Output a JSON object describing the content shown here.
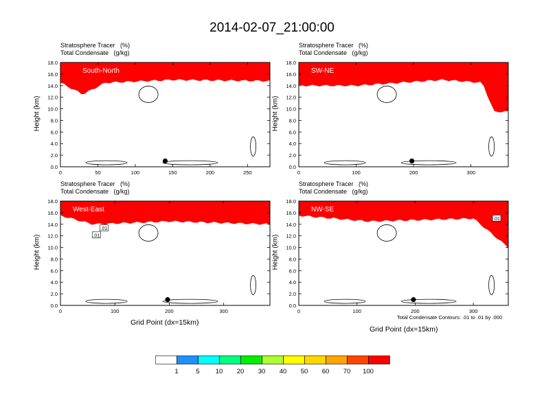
{
  "title": "2014-02-07_21:00:00",
  "panels": [
    {
      "id": "sn",
      "line1": "Stratosphere Tracer   (%)",
      "line2": "Total Condensate   (g/kg)",
      "inset": "South-North",
      "ylabel": "Height (km)",
      "xlabel": "",
      "xmax": 280,
      "xticks": [
        0,
        50,
        100,
        150,
        200,
        250
      ],
      "yticks": [
        "0.0",
        "2.0",
        "4.0",
        "6.0",
        "8.0",
        "10.0",
        "12.0",
        "14.0",
        "16.0",
        "18.0"
      ],
      "marker_x": 140,
      "box_labels": []
    },
    {
      "id": "swne",
      "line1": "Stratosphere Tracer   (%)",
      "line2": "Total Condensate   (g/kg)",
      "inset": "SW-NE",
      "ylabel": "Height (km)",
      "xlabel": "",
      "xmax": 365,
      "xticks": [
        0,
        100,
        200,
        300
      ],
      "yticks": [
        "0.0",
        "2.0",
        "4.0",
        "6.0",
        "8.0",
        "10.0",
        "12.0",
        "14.0",
        "16.0",
        "18.0"
      ],
      "marker_x": 197,
      "box_labels": []
    },
    {
      "id": "we",
      "line1": "Stratosphere Tracer   (%)",
      "line2": "Total Condensate   (g/kg)",
      "inset": "West-East",
      "ylabel": "Height (km)",
      "xlabel": "Grid Point (dx=15km)",
      "xmax": 385,
      "xticks": [
        0,
        100,
        200,
        300
      ],
      "yticks": [
        "0.0",
        "2.0",
        "4.0",
        "6.0",
        "8.0",
        "10.0",
        "12.0",
        "14.0",
        "16.0",
        "18.0"
      ],
      "marker_x": 197,
      "box_labels": [
        {
          "text": ".01",
          "x": 80,
          "y": 13.3
        },
        {
          "text": ".01",
          "x": 66,
          "y": 12.1
        }
      ]
    },
    {
      "id": "nwse",
      "line1": "Stratosphere Tracer   (%)",
      "line2": "Total Condensate   (g/kg)",
      "inset": "NW-SE",
      "ylabel": "Height (km)",
      "xlabel": "Grid Point (dx=15km)",
      "xmax": 360,
      "xticks": [
        0,
        100,
        200,
        300
      ],
      "yticks": [
        "0.0",
        "2.0",
        "4.0",
        "6.0",
        "8.0",
        "10.0",
        "12.0",
        "14.0",
        "16.0",
        "18.0"
      ],
      "marker_x": 197,
      "box_labels": [
        {
          "text": ".01",
          "x": 340,
          "y": 15.0
        }
      ],
      "note": "Total Condensate Contours: .01 to .01 by .000"
    }
  ],
  "colorbar": {
    "labels": [
      "1",
      "5",
      "10",
      "20",
      "30",
      "40",
      "50",
      "60",
      "70",
      "100"
    ],
    "colors": [
      "#ffffff",
      "#1e90ff",
      "#00ffff",
      "#00ff7f",
      "#00ee00",
      "#adff2f",
      "#ffff00",
      "#ffd700",
      "#ffa500",
      "#ff4500",
      "#ff0000"
    ]
  },
  "chart_data": [
    {
      "type": "heatmap",
      "panel": "South-North",
      "ylabel": "Height (km)",
      "ylim": [
        0,
        18
      ],
      "xlim": [
        0,
        280
      ],
      "series": [
        {
          "name": "Stratosphere Tracer (%)",
          "tropopause_km_approx": [
            [
              0,
              14.5
            ],
            [
              30,
              12.5
            ],
            [
              60,
              14.5
            ],
            [
              150,
              15.0
            ],
            [
              280,
              14.8
            ]
          ]
        },
        {
          "name": "Total Condensate (g/kg)",
          "contour": 0.01
        }
      ]
    },
    {
      "type": "heatmap",
      "panel": "SW-NE",
      "ylabel": "Height (km)",
      "ylim": [
        0,
        18
      ],
      "xlim": [
        0,
        365
      ],
      "series": [
        {
          "name": "Stratosphere Tracer (%)",
          "tropopause_km_approx": [
            [
              0,
              14.0
            ],
            [
              100,
              14.0
            ],
            [
              250,
              15.0
            ],
            [
              320,
              14.5
            ],
            [
              340,
              9.5
            ],
            [
              365,
              9.5
            ]
          ]
        },
        {
          "name": "Total Condensate (g/kg)",
          "contour": 0.01
        }
      ]
    },
    {
      "type": "heatmap",
      "panel": "West-East",
      "ylabel": "Height (km)",
      "xlabel": "Grid Point (dx=15km)",
      "ylim": [
        0,
        18
      ],
      "xlim": [
        0,
        385
      ],
      "series": [
        {
          "name": "Stratosphere Tracer (%)",
          "tropopause_km_approx": [
            [
              0,
              15.5
            ],
            [
              60,
              14.0
            ],
            [
              200,
              14.5
            ],
            [
              385,
              14.0
            ]
          ]
        },
        {
          "name": "Total Condensate (g/kg)",
          "contour": 0.01
        }
      ]
    },
    {
      "type": "heatmap",
      "panel": "NW-SE",
      "ylabel": "Height (km)",
      "xlabel": "Grid Point (dx=15km)",
      "ylim": [
        0,
        18
      ],
      "xlim": [
        0,
        360
      ],
      "series": [
        {
          "name": "Stratosphere Tracer (%)",
          "tropopause_km_approx": [
            [
              0,
              15.5
            ],
            [
              120,
              14.5
            ],
            [
              300,
              15.0
            ],
            [
              360,
              10.0
            ]
          ]
        },
        {
          "name": "Total Condensate (g/kg)",
          "contour": 0.01
        }
      ]
    }
  ]
}
